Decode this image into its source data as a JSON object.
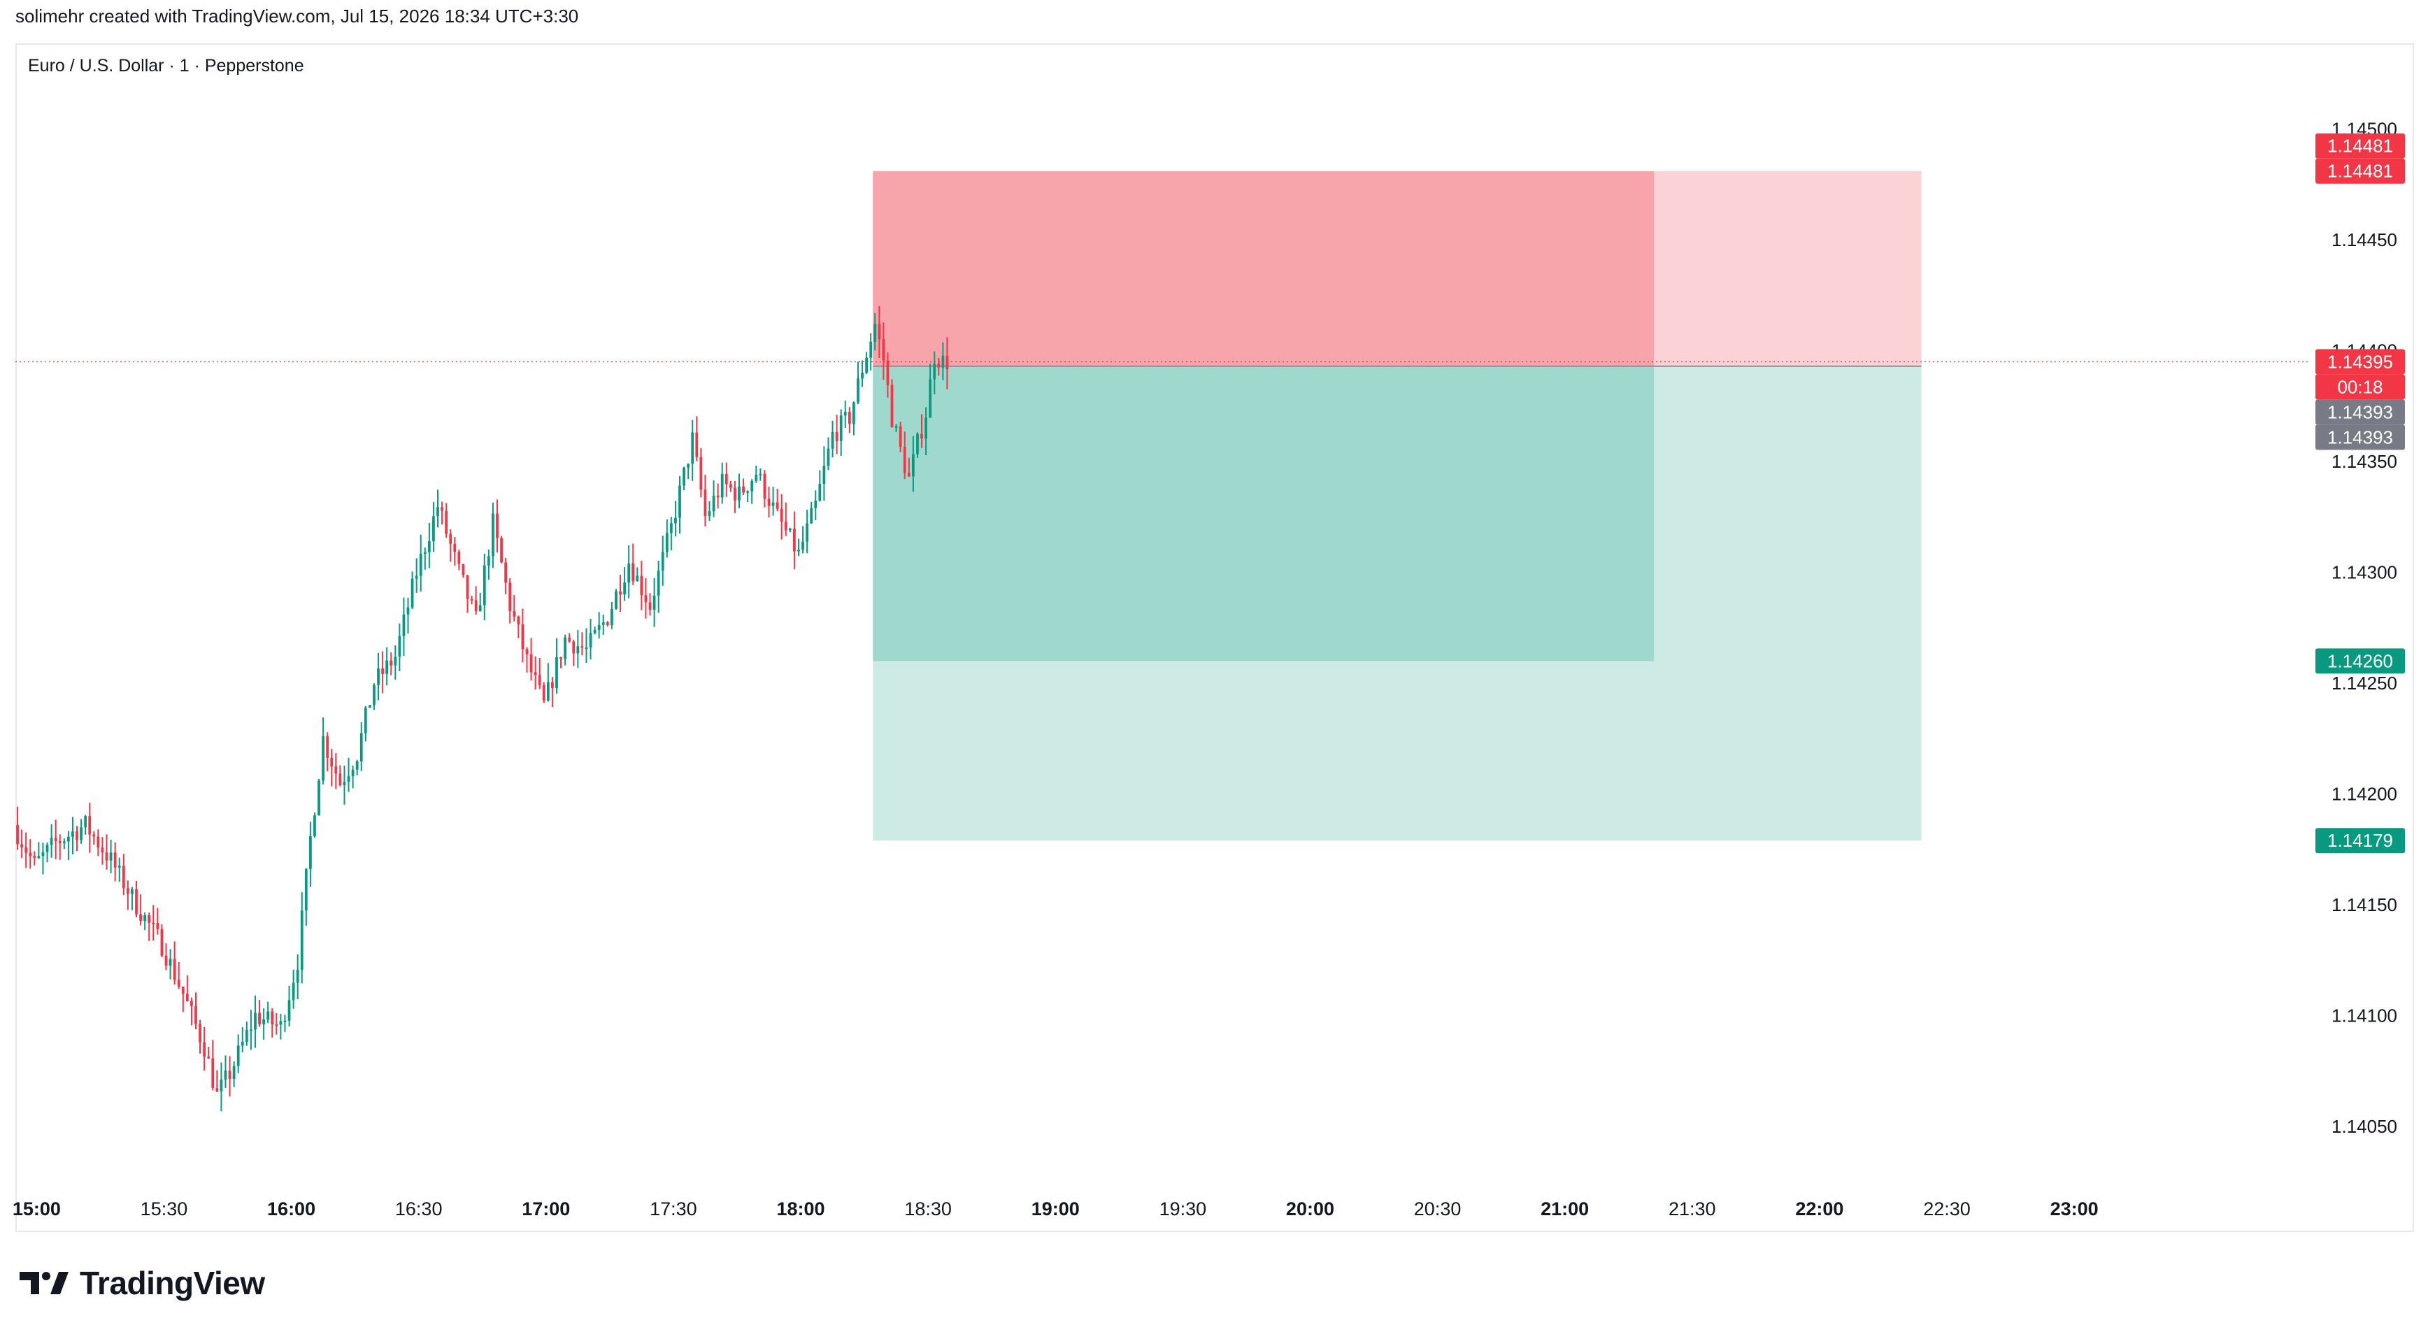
{
  "header": {
    "attribution": "solimehr created with TradingView.com, Jul 15, 2026 18:34 UTC+3:30"
  },
  "chart_title": "Euro / U.S. Dollar · 1 · Pepperstone",
  "brand": {
    "name": "TradingView"
  },
  "colors": {
    "up": "#089981",
    "down": "#f23645",
    "stop_zone": "#f7a5ab",
    "stop_zone_light": "#fbd3d6",
    "target_zone": "#9fd8cc",
    "target_zone_light": "#cdeae4",
    "current_price_line": "#f23645",
    "neutral_tag": "#787b86"
  },
  "chart_data": {
    "type": "candlestick",
    "y_axis": {
      "range": [
        1.14022,
        1.14538
      ],
      "ticks": [
        "1.14500",
        "1.14450",
        "1.14400",
        "1.14350",
        "1.14300",
        "1.14250",
        "1.14200",
        "1.14150",
        "1.14100",
        "1.14050"
      ]
    },
    "x_axis": {
      "range": [
        "14:55",
        "23:55"
      ],
      "ticks": [
        {
          "label": "15:00",
          "bold": true
        },
        {
          "label": "15:30",
          "bold": false
        },
        {
          "label": "16:00",
          "bold": true
        },
        {
          "label": "16:30",
          "bold": false
        },
        {
          "label": "17:00",
          "bold": true
        },
        {
          "label": "17:30",
          "bold": false
        },
        {
          "label": "18:00",
          "bold": true
        },
        {
          "label": "18:30",
          "bold": false
        },
        {
          "label": "19:00",
          "bold": true
        },
        {
          "label": "19:30",
          "bold": false
        },
        {
          "label": "20:00",
          "bold": true
        },
        {
          "label": "20:30",
          "bold": false
        },
        {
          "label": "21:00",
          "bold": true
        },
        {
          "label": "21:30",
          "bold": false
        },
        {
          "label": "22:00",
          "bold": true
        },
        {
          "label": "22:30",
          "bold": false
        },
        {
          "label": "23:00",
          "bold": true
        }
      ]
    },
    "price_path": {
      "start_time": "14:55",
      "end_time": "18:34",
      "points": [
        [
          "14:55",
          1.14186
        ],
        [
          "15:00",
          1.14168
        ],
        [
          "15:05",
          1.14178
        ],
        [
          "15:12",
          1.14186
        ],
        [
          "15:18",
          1.1417
        ],
        [
          "15:24",
          1.1415
        ],
        [
          "15:30",
          1.14132
        ],
        [
          "15:35",
          1.1411
        ],
        [
          "15:40",
          1.14086
        ],
        [
          "15:43",
          1.14064
        ],
        [
          "15:46",
          1.14074
        ],
        [
          "15:52",
          1.141
        ],
        [
          "15:58",
          1.14095
        ],
        [
          "16:02",
          1.14125
        ],
        [
          "16:05",
          1.1418
        ],
        [
          "16:08",
          1.14225
        ],
        [
          "16:12",
          1.14205
        ],
        [
          "16:16",
          1.14218
        ],
        [
          "16:20",
          1.1425
        ],
        [
          "16:25",
          1.14262
        ],
        [
          "16:30",
          1.143
        ],
        [
          "16:35",
          1.1433
        ],
        [
          "16:40",
          1.143
        ],
        [
          "16:44",
          1.14278
        ],
        [
          "16:48",
          1.14322
        ],
        [
          "16:52",
          1.14285
        ],
        [
          "16:56",
          1.1426
        ],
        [
          "17:00",
          1.1424
        ],
        [
          "17:05",
          1.1427
        ],
        [
          "17:10",
          1.14265
        ],
        [
          "17:15",
          1.1428
        ],
        [
          "17:20",
          1.14305
        ],
        [
          "17:25",
          1.14285
        ],
        [
          "17:30",
          1.1432
        ],
        [
          "17:35",
          1.1436
        ],
        [
          "17:38",
          1.14325
        ],
        [
          "17:42",
          1.1434
        ],
        [
          "17:46",
          1.14335
        ],
        [
          "17:50",
          1.14345
        ],
        [
          "17:55",
          1.14325
        ],
        [
          "18:00",
          1.14308
        ],
        [
          "18:04",
          1.1433
        ],
        [
          "18:08",
          1.14362
        ],
        [
          "18:12",
          1.1437
        ],
        [
          "18:15",
          1.14392
        ],
        [
          "18:18",
          1.14412
        ],
        [
          "18:20",
          1.14396
        ],
        [
          "18:22",
          1.1437
        ],
        [
          "18:24",
          1.14355
        ],
        [
          "18:26",
          1.14342
        ],
        [
          "18:28",
          1.14358
        ],
        [
          "18:30",
          1.14372
        ],
        [
          "18:32",
          1.14398
        ],
        [
          "18:34",
          1.14395
        ]
      ]
    },
    "position_tool": {
      "type": "short",
      "entry": 1.14393,
      "stop": 1.14481,
      "take_profit": 1.14179,
      "inner_target": 1.1426,
      "start_time": "18:17",
      "inner_end_time": "21:21",
      "end_time": "22:24"
    },
    "price_tags": [
      {
        "label": "1.14481",
        "value": 1.14481,
        "style": "down",
        "offset": -1
      },
      {
        "label": "1.14481",
        "value": 1.14481,
        "style": "down",
        "offset": 0
      },
      {
        "label": "1.14395",
        "value": 1.14395,
        "style": "down",
        "offset": 0
      },
      {
        "label": "00:18",
        "value": 1.14395,
        "style": "down",
        "offset": 1
      },
      {
        "label": "1.14393",
        "value": 1.14393,
        "style": "neutral",
        "offset": 2
      },
      {
        "label": "1.14393",
        "value": 1.14393,
        "style": "neutral",
        "offset": 3
      },
      {
        "label": "1.14260",
        "value": 1.1426,
        "style": "up",
        "offset": 0
      },
      {
        "label": "1.14179",
        "value": 1.14179,
        "style": "up",
        "offset": 0
      }
    ],
    "current_price": 1.14395
  }
}
